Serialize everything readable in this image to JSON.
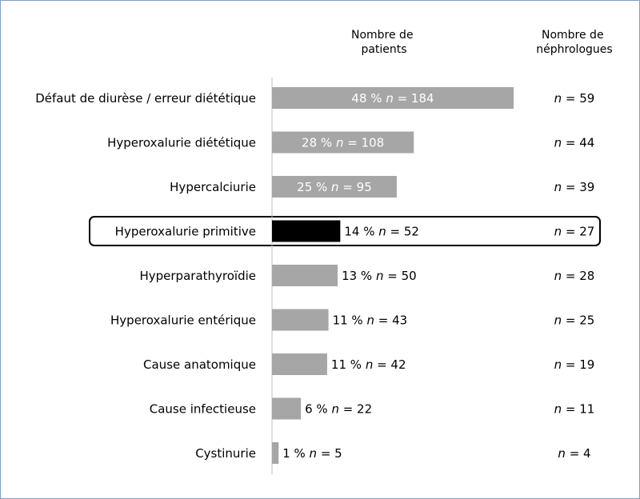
{
  "chart_data": {
    "type": "bar",
    "orientation": "horizontal",
    "headers": {
      "patients": [
        "Nombre de",
        "patients"
      ],
      "nephrologists": [
        "Nombre de",
        "néphrologues"
      ]
    },
    "categories": [
      "Défaut de diurèse / erreur diététique",
      "Hyperoxalurie diététique",
      "Hypercalciurie",
      "Hyperoxalurie primitive",
      "Hyperparathyroïdie",
      "Hyperoxalurie entérique",
      "Cause anatomique",
      "Cause infectieuse",
      "Cystinurie"
    ],
    "series": [
      {
        "values": [
          184,
          108,
          95,
          52,
          50,
          43,
          42,
          22,
          5
        ],
        "percent": [
          "48 %",
          "28 %",
          "25 %",
          "14 %",
          "13 %",
          "11 %",
          "11 %",
          "6 %",
          "1 %"
        ]
      }
    ],
    "nephrologists": [
      59,
      44,
      39,
      27,
      28,
      25,
      19,
      11,
      4
    ],
    "n_prefix": "n",
    "highlight_index": 3,
    "colors": {
      "bar": "#a6a6a6",
      "highlight_bar": "#000000",
      "axis": "#bfbfbf",
      "inside_label": "#ffffff",
      "frame": "#7f9fc7"
    }
  }
}
